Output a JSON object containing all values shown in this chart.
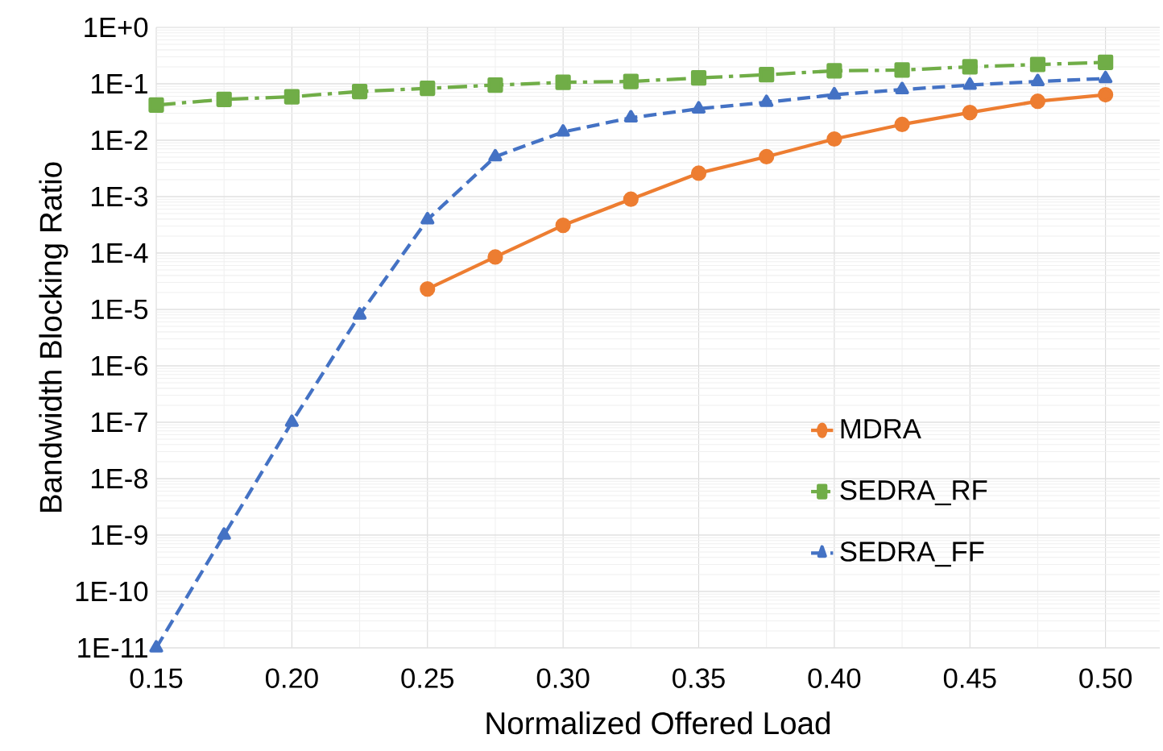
{
  "chart_data": {
    "type": "line",
    "xlabel": "Normalized Offered Load",
    "ylabel": "Bandwidth Blocking Ratio",
    "log": "y",
    "grid": true,
    "legend": "bottom right",
    "xlim": [
      0.15,
      0.52
    ],
    "ylim": [
      1e-11,
      1
    ],
    "xticks": [
      {
        "value": 0.15,
        "label": "0.15"
      },
      {
        "value": 0.2,
        "label": "0.20"
      },
      {
        "value": 0.25,
        "label": "0.25"
      },
      {
        "value": 0.3,
        "label": "0.30"
      },
      {
        "value": 0.35,
        "label": "0.35"
      },
      {
        "value": 0.4,
        "label": "0.40"
      },
      {
        "value": 0.45,
        "label": "0.45"
      },
      {
        "value": 0.5,
        "label": "0.50"
      }
    ],
    "yticks": [
      {
        "value": 1e-11,
        "label": "1E-11"
      },
      {
        "value": 1e-10,
        "label": "1E-10"
      },
      {
        "value": 1e-09,
        "label": "1E-9"
      },
      {
        "value": 1e-08,
        "label": "1E-8"
      },
      {
        "value": 1e-07,
        "label": "1E-7"
      },
      {
        "value": 1e-06,
        "label": "1E-6"
      },
      {
        "value": 1e-05,
        "label": "1E-5"
      },
      {
        "value": 0.0001,
        "label": "1E-4"
      },
      {
        "value": 0.001,
        "label": "1E-3"
      },
      {
        "value": 0.01,
        "label": "1E-2"
      },
      {
        "value": 0.1,
        "label": "1E-1"
      },
      {
        "value": 1,
        "label": "1E+0"
      }
    ],
    "series": [
      {
        "name": "MDRA",
        "color": "#ed7d31",
        "marker": "circle",
        "line_style": "solid",
        "x": [
          0.25,
          0.275,
          0.3,
          0.325,
          0.35,
          0.375,
          0.4,
          0.425,
          0.45,
          0.475,
          0.5
        ],
        "values": [
          2.3e-05,
          8.5e-05,
          0.00031,
          0.0009,
          0.0026,
          0.0051,
          0.0105,
          0.019,
          0.031,
          0.049,
          0.064
        ]
      },
      {
        "name": "SEDRA_RF",
        "color": "#70ad47",
        "marker": "square",
        "line_style": "dashdot",
        "x": [
          0.15,
          0.175,
          0.2,
          0.225,
          0.25,
          0.275,
          0.3,
          0.325,
          0.35,
          0.375,
          0.4,
          0.425,
          0.45,
          0.475,
          0.5
        ],
        "values": [
          0.042,
          0.053,
          0.059,
          0.073,
          0.083,
          0.095,
          0.106,
          0.11,
          0.127,
          0.145,
          0.17,
          0.175,
          0.2,
          0.22,
          0.24
        ]
      },
      {
        "name": "SEDRA_FF",
        "color": "#4472c4",
        "marker": "triangle",
        "line_style": "dashed",
        "x": [
          0.15,
          0.175,
          0.2,
          0.225,
          0.25,
          0.275,
          0.3,
          0.325,
          0.35,
          0.375,
          0.4,
          0.425,
          0.45,
          0.475,
          0.5
        ],
        "values": [
          1e-11,
          1e-09,
          1e-07,
          8e-06,
          0.00039,
          0.0051,
          0.014,
          0.025,
          0.036,
          0.047,
          0.064,
          0.079,
          0.095,
          0.11,
          0.124
        ]
      }
    ]
  }
}
